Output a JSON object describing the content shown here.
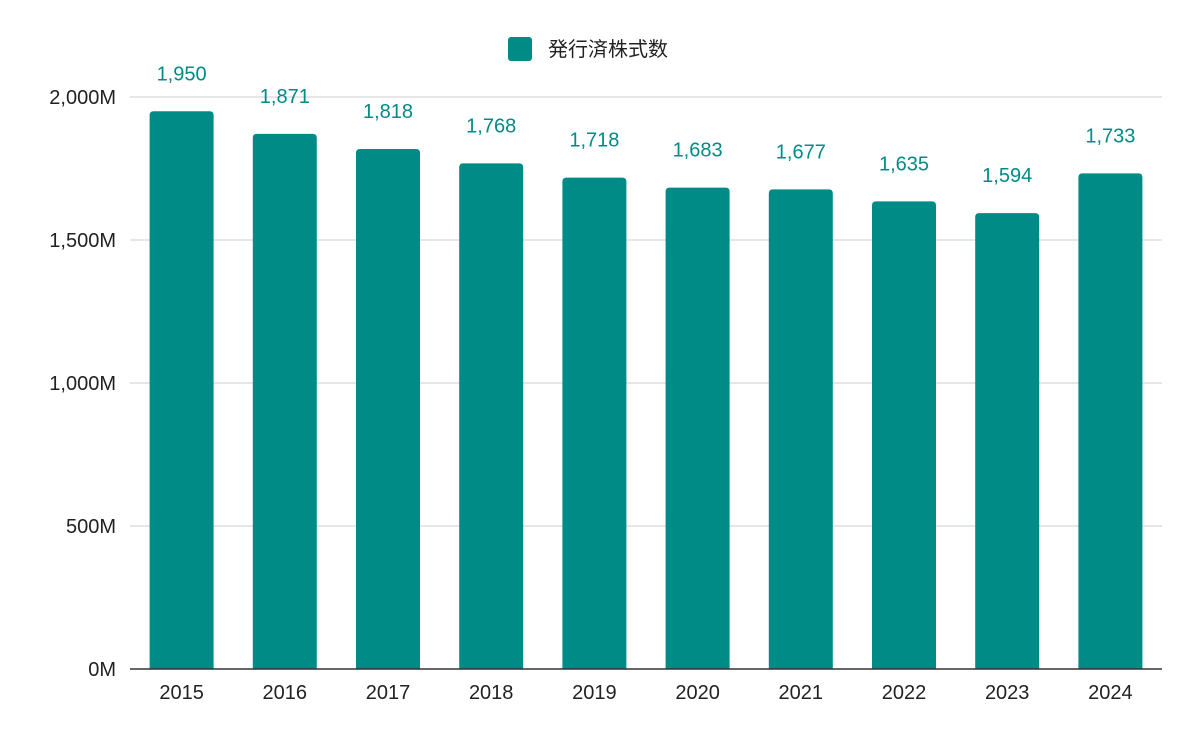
{
  "chart_data": {
    "type": "bar",
    "categories": [
      "2015",
      "2016",
      "2017",
      "2018",
      "2019",
      "2020",
      "2021",
      "2022",
      "2023",
      "2024"
    ],
    "series": [
      {
        "name": "発行済株式数",
        "values": [
          1950,
          1871,
          1818,
          1768,
          1718,
          1683,
          1677,
          1635,
          1594,
          1733
        ],
        "data_labels": [
          "1,950",
          "1,871",
          "1,818",
          "1,768",
          "1,718",
          "1,683",
          "1,677",
          "1,635",
          "1,594",
          "1,733"
        ],
        "color": "#008b87"
      }
    ],
    "title": "",
    "xlabel": "",
    "ylabel": "",
    "ylim": [
      0,
      2000
    ],
    "y_ticks": [
      0,
      500,
      1000,
      1500,
      2000
    ],
    "y_tick_labels": [
      "0M",
      "500M",
      "1,000M",
      "1,500M",
      "2,000M"
    ],
    "grid": true,
    "legend_position": "top-center"
  }
}
